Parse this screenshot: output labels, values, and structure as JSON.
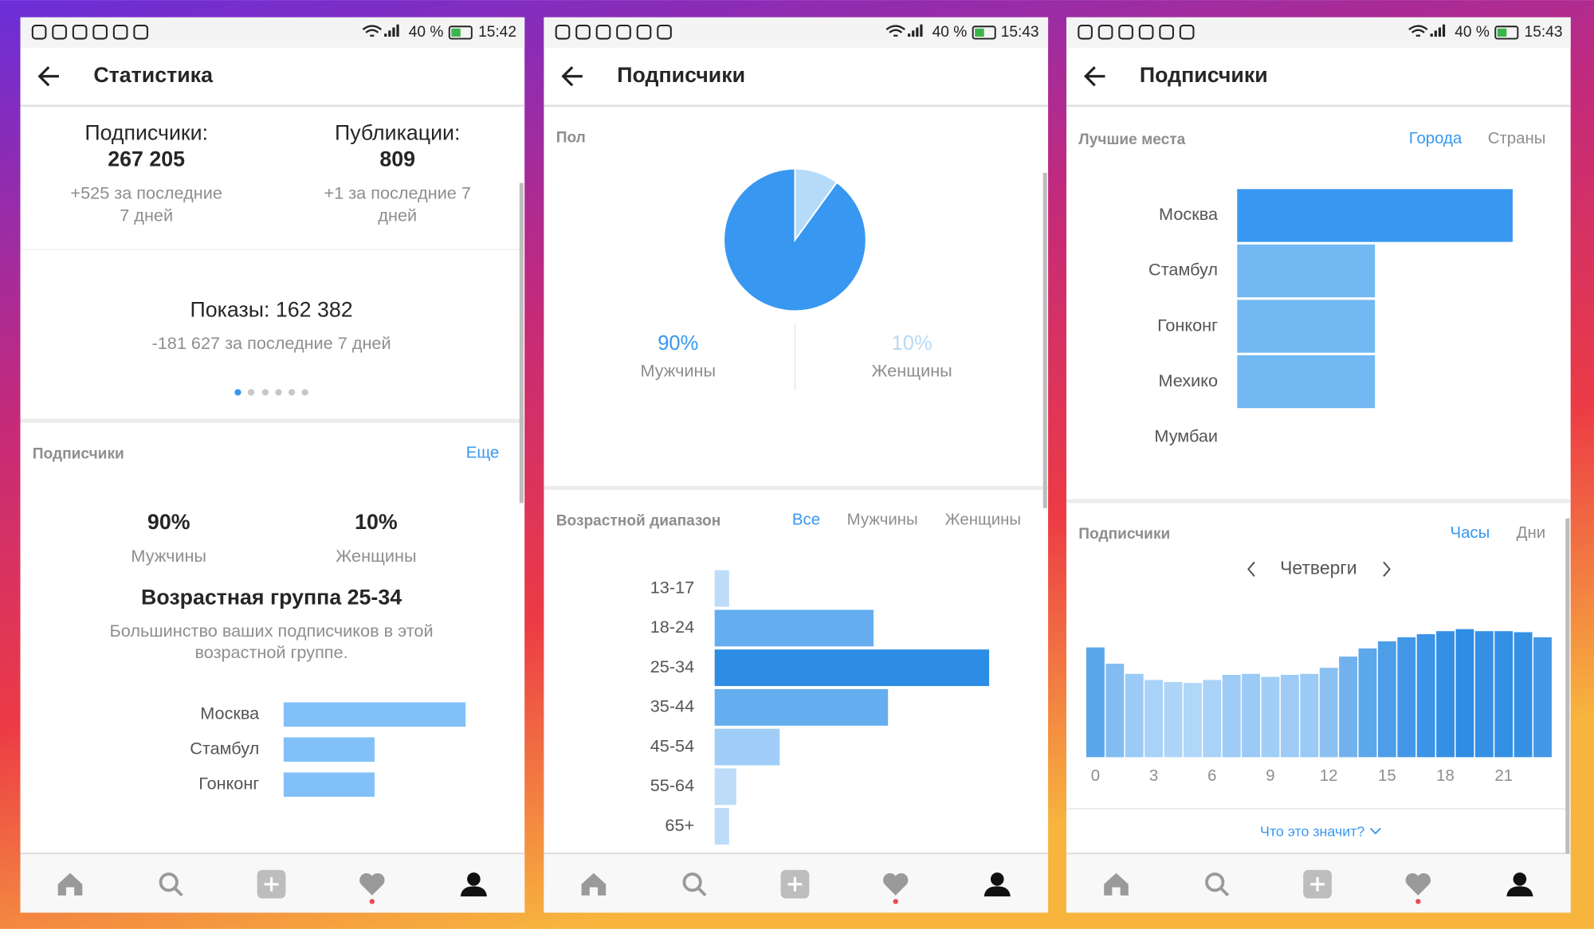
{
  "screens": [
    {
      "status": {
        "battery": "40 %",
        "time": "15:42"
      },
      "title": "Статистика",
      "followers": {
        "label": "Подписчики:",
        "value": "267 205",
        "change": [
          "+525 за последние",
          "7 дней"
        ]
      },
      "posts": {
        "label": "Публикации:",
        "value": "809",
        "change": [
          "+1 за последние 7",
          "дней"
        ]
      },
      "impressions": {
        "title": "Показы: 162 382",
        "change": "-181 627 за последние 7 дней"
      },
      "audience": {
        "title": "Подписчики",
        "more": "Еще",
        "gender": [
          {
            "value": "90%",
            "label": "Мужчины"
          },
          {
            "value": "10%",
            "label": "Женщины"
          }
        ],
        "age_title": "Возрастная группа 25-34",
        "age_text": [
          "Большинство ваших подписчиков в этой",
          "возрастной группе."
        ],
        "cities": {
          "type": "bar",
          "categories": [
            "Москва",
            "Стамбул",
            "Гонконг"
          ],
          "values": [
            10,
            5,
            5
          ],
          "color": "#82c1f7"
        }
      }
    },
    {
      "status": {
        "battery": "40 %",
        "time": "15:43"
      },
      "title": "Подписчики",
      "gender": {
        "type": "pie",
        "title": "Пол",
        "categories": [
          "Мужчины",
          "Женщины"
        ],
        "values": [
          90,
          10
        ],
        "value_labels": [
          "90%",
          "10%"
        ],
        "colors": [
          "#3897f0",
          "#b5dbf8"
        ]
      },
      "age": {
        "type": "bar",
        "title": "Возрастной диапазон",
        "tabs": [
          "Все",
          "Мужчины",
          "Женщины"
        ],
        "categories": [
          "13-17",
          "18-24",
          "25-34",
          "35-44",
          "45-54",
          "55-64",
          "65+"
        ],
        "values": [
          2,
          22,
          38,
          24,
          9,
          3,
          2
        ],
        "colors": [
          "#bcdcfa",
          "#64aef0",
          "#2d8de4",
          "#64aef0",
          "#9fcdf7",
          "#bcdcfa",
          "#bcdcfa"
        ]
      }
    },
    {
      "status": {
        "battery": "40 %",
        "time": "15:43"
      },
      "title": "Подписчики",
      "places": {
        "type": "bar",
        "title": "Лучшие места",
        "tabs": [
          "Города",
          "Страны"
        ],
        "categories": [
          "Москва",
          "Стамбул",
          "Гонконг",
          "Мехико",
          "Мумбаи"
        ],
        "values": [
          10,
          5,
          5,
          5,
          null
        ],
        "colors": [
          "#3897f0",
          "#72b8f2",
          "#72b8f2",
          "#72b8f2",
          "#72b8f2"
        ]
      },
      "hourly": {
        "type": "bar",
        "title": "Подписчики",
        "tabs": [
          "Часы",
          "Дни"
        ],
        "period": "Четверги",
        "x": [
          0,
          1,
          2,
          3,
          4,
          5,
          6,
          7,
          8,
          9,
          10,
          11,
          12,
          13,
          14,
          15,
          16,
          17,
          18,
          19,
          20,
          21,
          22,
          23
        ],
        "values": [
          108,
          92,
          82,
          76,
          74,
          73,
          76,
          81,
          82,
          79,
          81,
          82,
          88,
          99,
          107,
          114,
          118,
          121,
          124,
          126,
          124,
          124,
          123,
          118
        ],
        "xticks": [
          0,
          3,
          6,
          9,
          12,
          15,
          18,
          21
        ],
        "colors": [
          "#b0d6f8",
          "#2f8de4"
        ],
        "link": "Что это значит?"
      }
    }
  ]
}
